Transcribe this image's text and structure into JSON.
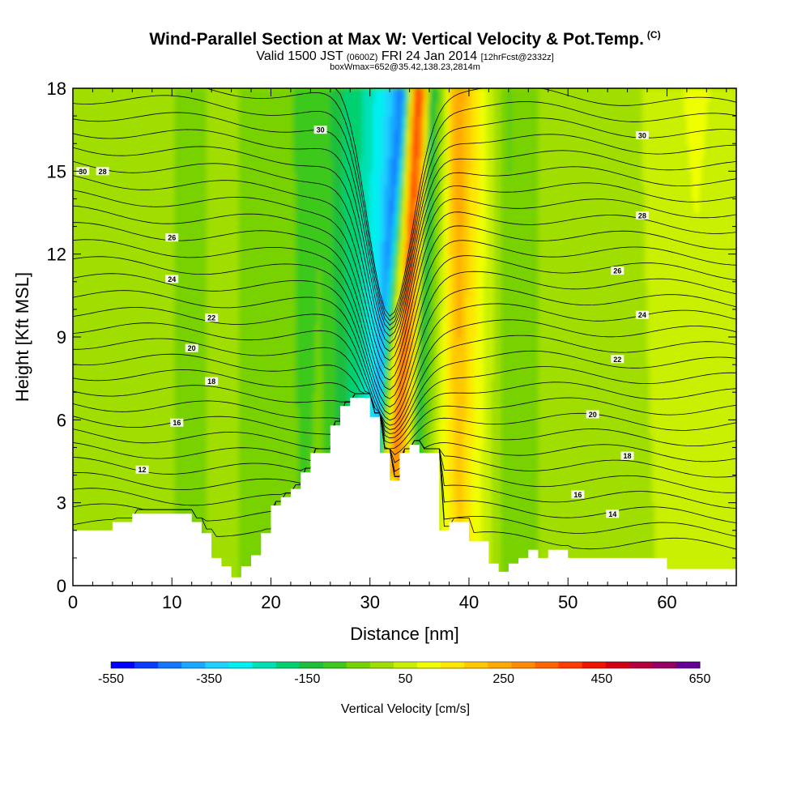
{
  "header": {
    "title": "Wind-Parallel Section at Max W: Vertical Velocity & Pot.Temp.",
    "copyright": "(C)",
    "subtitle_valid": "Valid 1500 JST",
    "subtitle_utc": "(0600Z)",
    "subtitle_date": "FRI 24 Jan 2014",
    "subtitle_forecast": "[12hrFcst@2332z]",
    "subtitle_box": "boxWmax=652@35.42,138.23,2814m"
  },
  "chart_data": {
    "type": "heatmap",
    "title": "Wind-Parallel Section at Max W: Vertical Velocity & Pot.Temp.",
    "xlabel": "Distance [nm]",
    "ylabel": "Height [Kft MSL]",
    "xlim": [
      0,
      67
    ],
    "ylim": [
      0,
      18
    ],
    "x_ticks": [
      0,
      10,
      20,
      30,
      40,
      50,
      60
    ],
    "y_ticks": [
      0,
      3,
      6,
      9,
      12,
      15,
      18
    ],
    "grid": false,
    "terrain_profile": {
      "x": [
        0,
        4,
        4,
        6,
        6,
        12,
        12,
        13,
        13,
        14,
        14,
        15,
        15,
        16,
        16,
        17,
        17,
        18,
        18,
        19,
        19,
        20,
        20,
        21,
        21,
        22,
        22,
        23,
        23,
        24,
        24,
        26,
        26,
        27,
        27,
        28,
        28,
        29,
        29,
        30,
        30,
        31,
        31,
        32,
        32,
        33,
        33,
        34,
        34,
        35,
        35,
        36,
        36,
        37,
        37,
        38,
        38,
        40,
        40,
        42,
        42,
        43,
        43,
        44,
        44,
        45,
        45,
        46,
        46,
        47,
        47,
        48,
        48,
        50,
        50,
        51,
        51,
        60,
        60,
        63,
        63,
        67
      ],
      "height": [
        2,
        2,
        2.3,
        2.3,
        2.6,
        2.6,
        2.3,
        2.3,
        1.9,
        1.9,
        1.0,
        1.0,
        0.7,
        0.7,
        0.3,
        0.3,
        0.7,
        0.7,
        1.1,
        1.1,
        1.9,
        1.9,
        2.9,
        2.9,
        3.2,
        3.2,
        3.5,
        3.5,
        4.1,
        4.1,
        4.8,
        4.8,
        5.8,
        5.8,
        6.5,
        6.5,
        6.8,
        6.8,
        6.8,
        6.8,
        6.1,
        6.1,
        4.8,
        4.8,
        3.8,
        3.8,
        4.8,
        4.8,
        5.1,
        5.1,
        4.8,
        4.8,
        4.8,
        4.8,
        2.0,
        2.0,
        2.3,
        2.3,
        1.6,
        1.6,
        0.8,
        0.8,
        0.5,
        0.5,
        0.8,
        0.8,
        1.0,
        1.0,
        1.3,
        1.3,
        1.0,
        1.0,
        1.3,
        1.3,
        1.0,
        1.0,
        1.0,
        1.0,
        0.6,
        0.6,
        0.6,
        0.6
      ]
    },
    "vertical_velocity": {
      "name": "Vertical Velocity",
      "units": "cm/s",
      "levels": [
        -550,
        -500,
        -450,
        -400,
        -350,
        -300,
        -250,
        -200,
        -150,
        -100,
        -50,
        0,
        50,
        100,
        150,
        200,
        250,
        300,
        350,
        400,
        450,
        500,
        550,
        600,
        650
      ],
      "x_nodes": [
        0,
        5,
        8,
        12,
        15,
        18,
        21,
        23,
        25,
        27,
        28.5,
        30,
        31,
        32,
        33,
        34,
        35,
        36,
        37.5,
        39,
        40,
        42,
        44,
        47,
        50,
        53,
        57,
        60,
        63,
        67
      ],
      "profile": [
        20,
        0,
        40,
        -30,
        30,
        -20,
        0,
        -70,
        -50,
        -130,
        -200,
        -300,
        -420,
        80,
        420,
        250,
        -150,
        -30,
        150,
        280,
        200,
        80,
        -50,
        0,
        30,
        40,
        40,
        80,
        100,
        70
      ],
      "max": 652
    },
    "potential_temperature": {
      "name": "Pot.Temp.",
      "contour_labels": [
        12,
        14,
        16,
        18,
        20,
        22,
        24,
        26,
        28,
        30
      ],
      "left_heights": [
        4.2,
        5.9,
        7.4,
        8.6,
        9.7,
        11.1,
        12.6,
        15.0
      ],
      "right_heights": [
        2.6,
        3.3,
        4.7,
        6.2,
        8.2,
        9.8,
        11.4,
        13.4,
        16.3
      ]
    },
    "colorbar": {
      "label": "Vertical Velocity [cm/s]",
      "tick_labels": [
        "-550",
        "-350",
        "-150",
        "50",
        "250",
        "450",
        "650"
      ],
      "colors": [
        "#0000ff",
        "#0a3cff",
        "#1478ff",
        "#19a8ff",
        "#1ed2ff",
        "#00f0f0",
        "#00e0b4",
        "#00d070",
        "#1ebe3c",
        "#3cc81e",
        "#78d200",
        "#a0de00",
        "#c8f000",
        "#f0ff00",
        "#ffe600",
        "#ffc800",
        "#ffaa00",
        "#ff8c00",
        "#ff6400",
        "#ff3c00",
        "#f01400",
        "#d20014",
        "#b4003c",
        "#960064",
        "#640096"
      ]
    }
  }
}
